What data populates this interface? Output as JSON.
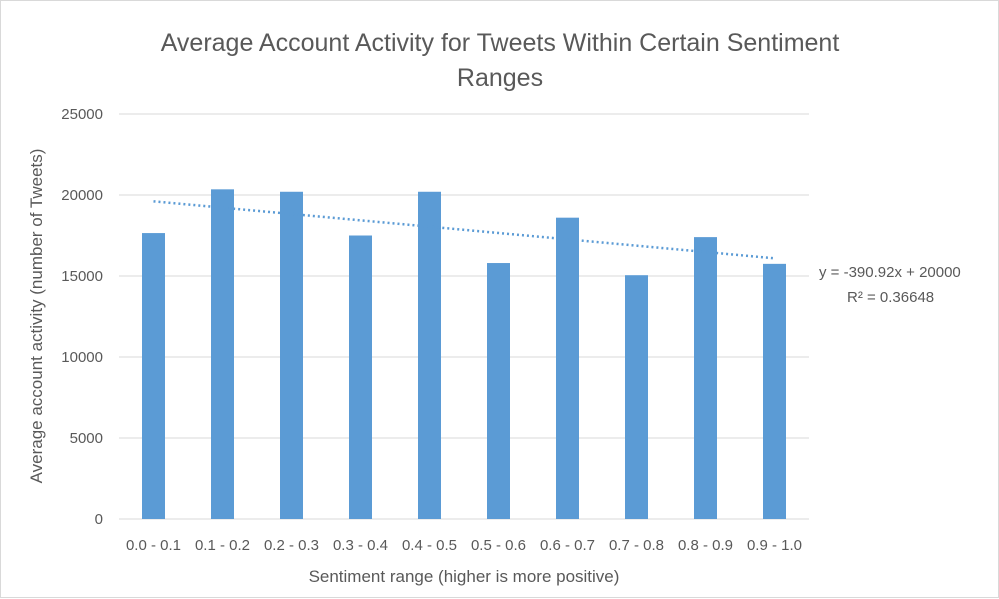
{
  "chart_data": {
    "type": "bar",
    "title_lines": [
      "Average Account Activity for Tweets Within Certain Sentiment",
      "Ranges"
    ],
    "xlabel": "Sentiment range (higher is more positive)",
    "ylabel": "Average account activity (number of Tweets)",
    "categories": [
      "0.0 - 0.1",
      "0.1 - 0.2",
      "0.2 - 0.3",
      "0.3 - 0.4",
      "0.4 - 0.5",
      "0.5 - 0.6",
      "0.6 - 0.7",
      "0.7 - 0.8",
      "0.8 - 0.9",
      "0.9 - 1.0"
    ],
    "values": [
      17650,
      20350,
      20200,
      17500,
      20200,
      15800,
      18600,
      15050,
      17400,
      15750
    ],
    "ylim": [
      0,
      25000
    ],
    "yticks": [
      "0",
      "5000",
      "10000",
      "15000",
      "20000",
      "25000"
    ],
    "grid": true,
    "legend": "none",
    "bar_color": "#5b9bd5",
    "trendline": {
      "type": "linear",
      "slope": -390.92,
      "intercept": 20000,
      "color": "#5b9bd5",
      "equation": "y = -390.92x + 20000",
      "r_squared": "R² = 0.36648"
    }
  }
}
